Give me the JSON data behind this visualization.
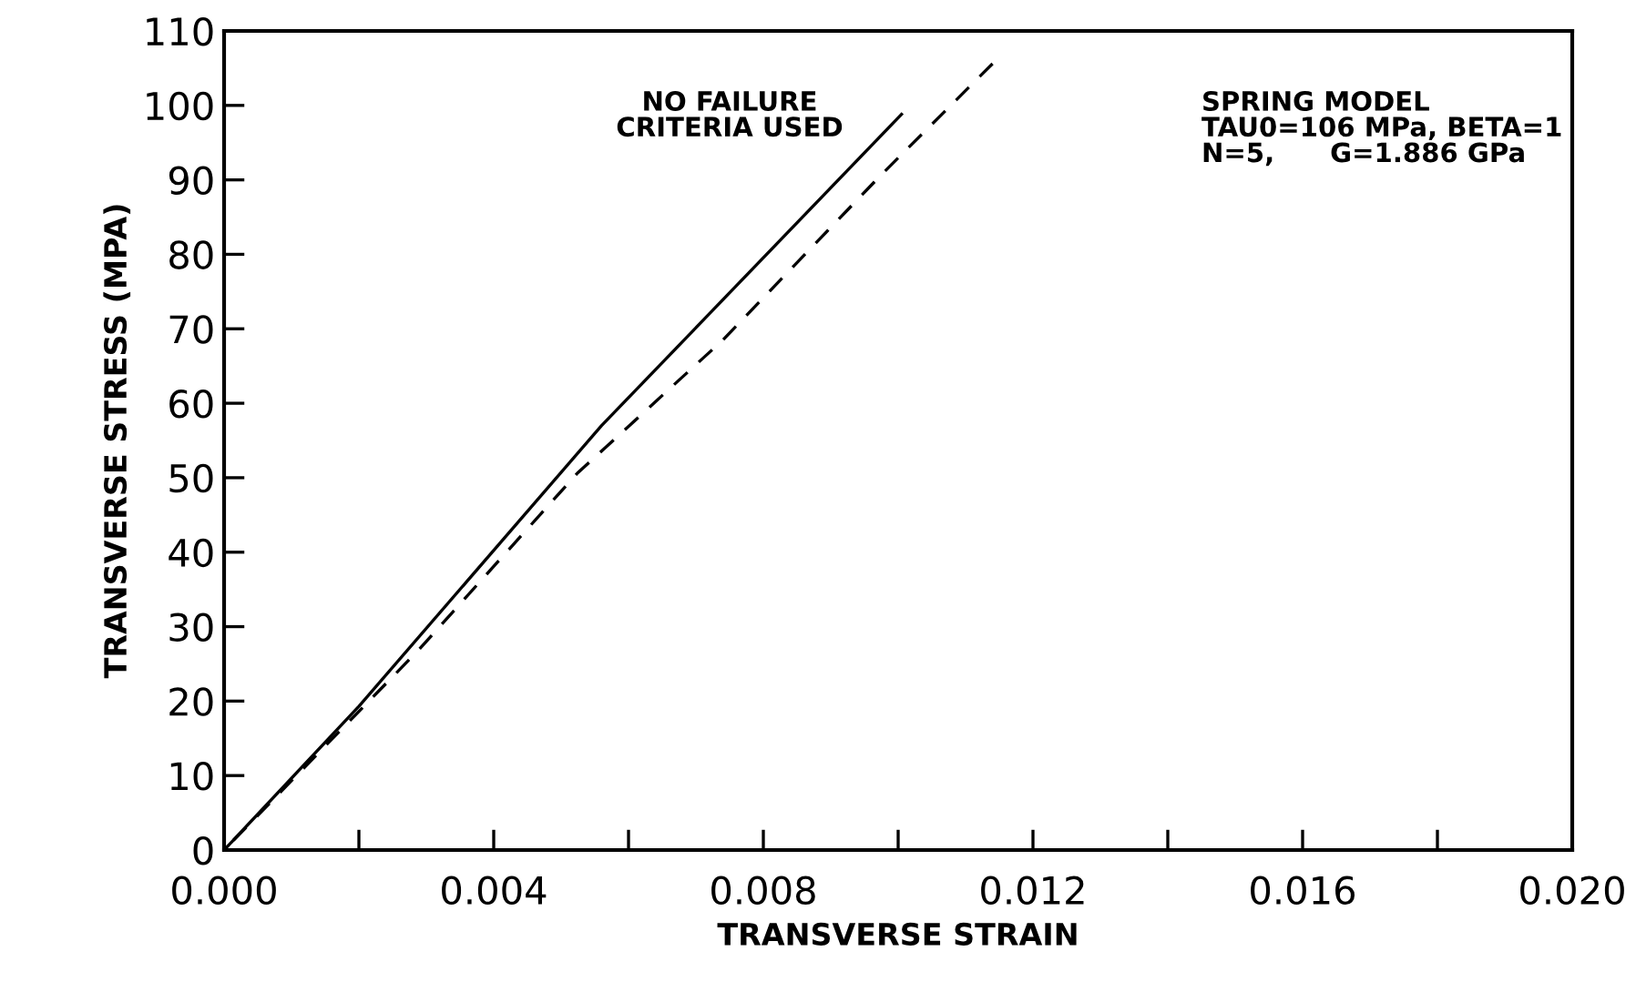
{
  "chart_data": {
    "type": "line",
    "xlabel": "TRANSVERSE STRAIN",
    "ylabel": "TRANSVERSE STRESS (MPA)",
    "xlim": [
      0,
      0.02
    ],
    "ylim": [
      0,
      110
    ],
    "xticks": [
      {
        "value": 0,
        "label": "0.000"
      },
      {
        "value": 0.002,
        "label": null
      },
      {
        "value": 0.004,
        "label": "0.004"
      },
      {
        "value": 0.006,
        "label": null
      },
      {
        "value": 0.008,
        "label": "0.008"
      },
      {
        "value": 0.01,
        "label": null
      },
      {
        "value": 0.012,
        "label": "0.012"
      },
      {
        "value": 0.014,
        "label": null
      },
      {
        "value": 0.016,
        "label": "0.016"
      },
      {
        "value": 0.018,
        "label": null
      },
      {
        "value": 0.02,
        "label": "0.020"
      }
    ],
    "yticks": [
      0,
      10,
      20,
      30,
      40,
      50,
      60,
      70,
      80,
      90,
      100,
      110
    ],
    "grid": false,
    "legend": false,
    "series": [
      {
        "color": "#000000",
        "line_style": "solid",
        "x": [
          0,
          0.002,
          0.0056,
          0.01005
        ],
        "values": [
          0,
          19.3,
          57,
          98.8
        ]
      },
      {
        "color": "#000000",
        "line_style": "dashed",
        "x": [
          0,
          0.00289,
          0.00524,
          0.0074,
          0.00973,
          0.0114
        ],
        "values": [
          0,
          26.9,
          50.6,
          68.5,
          90.5,
          105.6
        ]
      }
    ],
    "annotations": [
      "NO FAILURE\nCRITERIA USED",
      "SPRING MODEL\nTAU0=106 MPa, BETA=1\nN=5,      G=1.886 GPa"
    ]
  }
}
